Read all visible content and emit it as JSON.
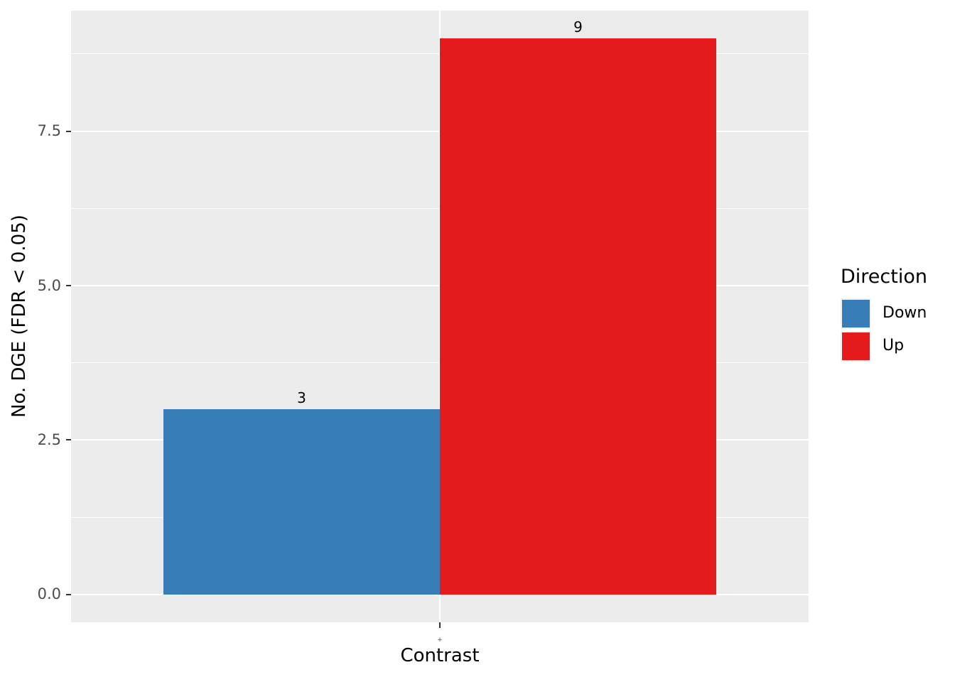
{
  "figure": {
    "background": "#FFFFFF",
    "panel_background": "#EBEBEB",
    "grid_color": "#FFFFFF",
    "tick_mark_color": "#333333",
    "tick_label_color": "#4D4D4D",
    "text_color": "#000000"
  },
  "chart_data": {
    "type": "bar",
    "title": "",
    "xlabel": "Contrast",
    "ylabel": "No. DGE (FDR < 0.05)",
    "categories": [
      "+"
    ],
    "series": [
      {
        "name": "Down",
        "values": [
          3
        ],
        "color": "#377EB8"
      },
      {
        "name": "Up",
        "values": [
          9
        ],
        "color": "#E41A1C"
      }
    ],
    "bar_value_labels": [
      "3",
      "9"
    ],
    "ylim": [
      -0.45,
      9.45
    ],
    "yticks": [
      {
        "value": 0.0,
        "label": "0.0"
      },
      {
        "value": 2.5,
        "label": "2.5"
      },
      {
        "value": 5.0,
        "label": "5.0"
      },
      {
        "value": 7.5,
        "label": "7.5"
      }
    ],
    "yticks_minor": [
      1.25,
      3.75,
      6.25,
      8.75
    ],
    "grid": true,
    "legend_position": "right",
    "bar_width_frac": 0.375
  },
  "legend": {
    "title": "Direction",
    "items": [
      {
        "label": "Down",
        "color": "#377EB8"
      },
      {
        "label": "Up",
        "color": "#E41A1C"
      }
    ]
  }
}
